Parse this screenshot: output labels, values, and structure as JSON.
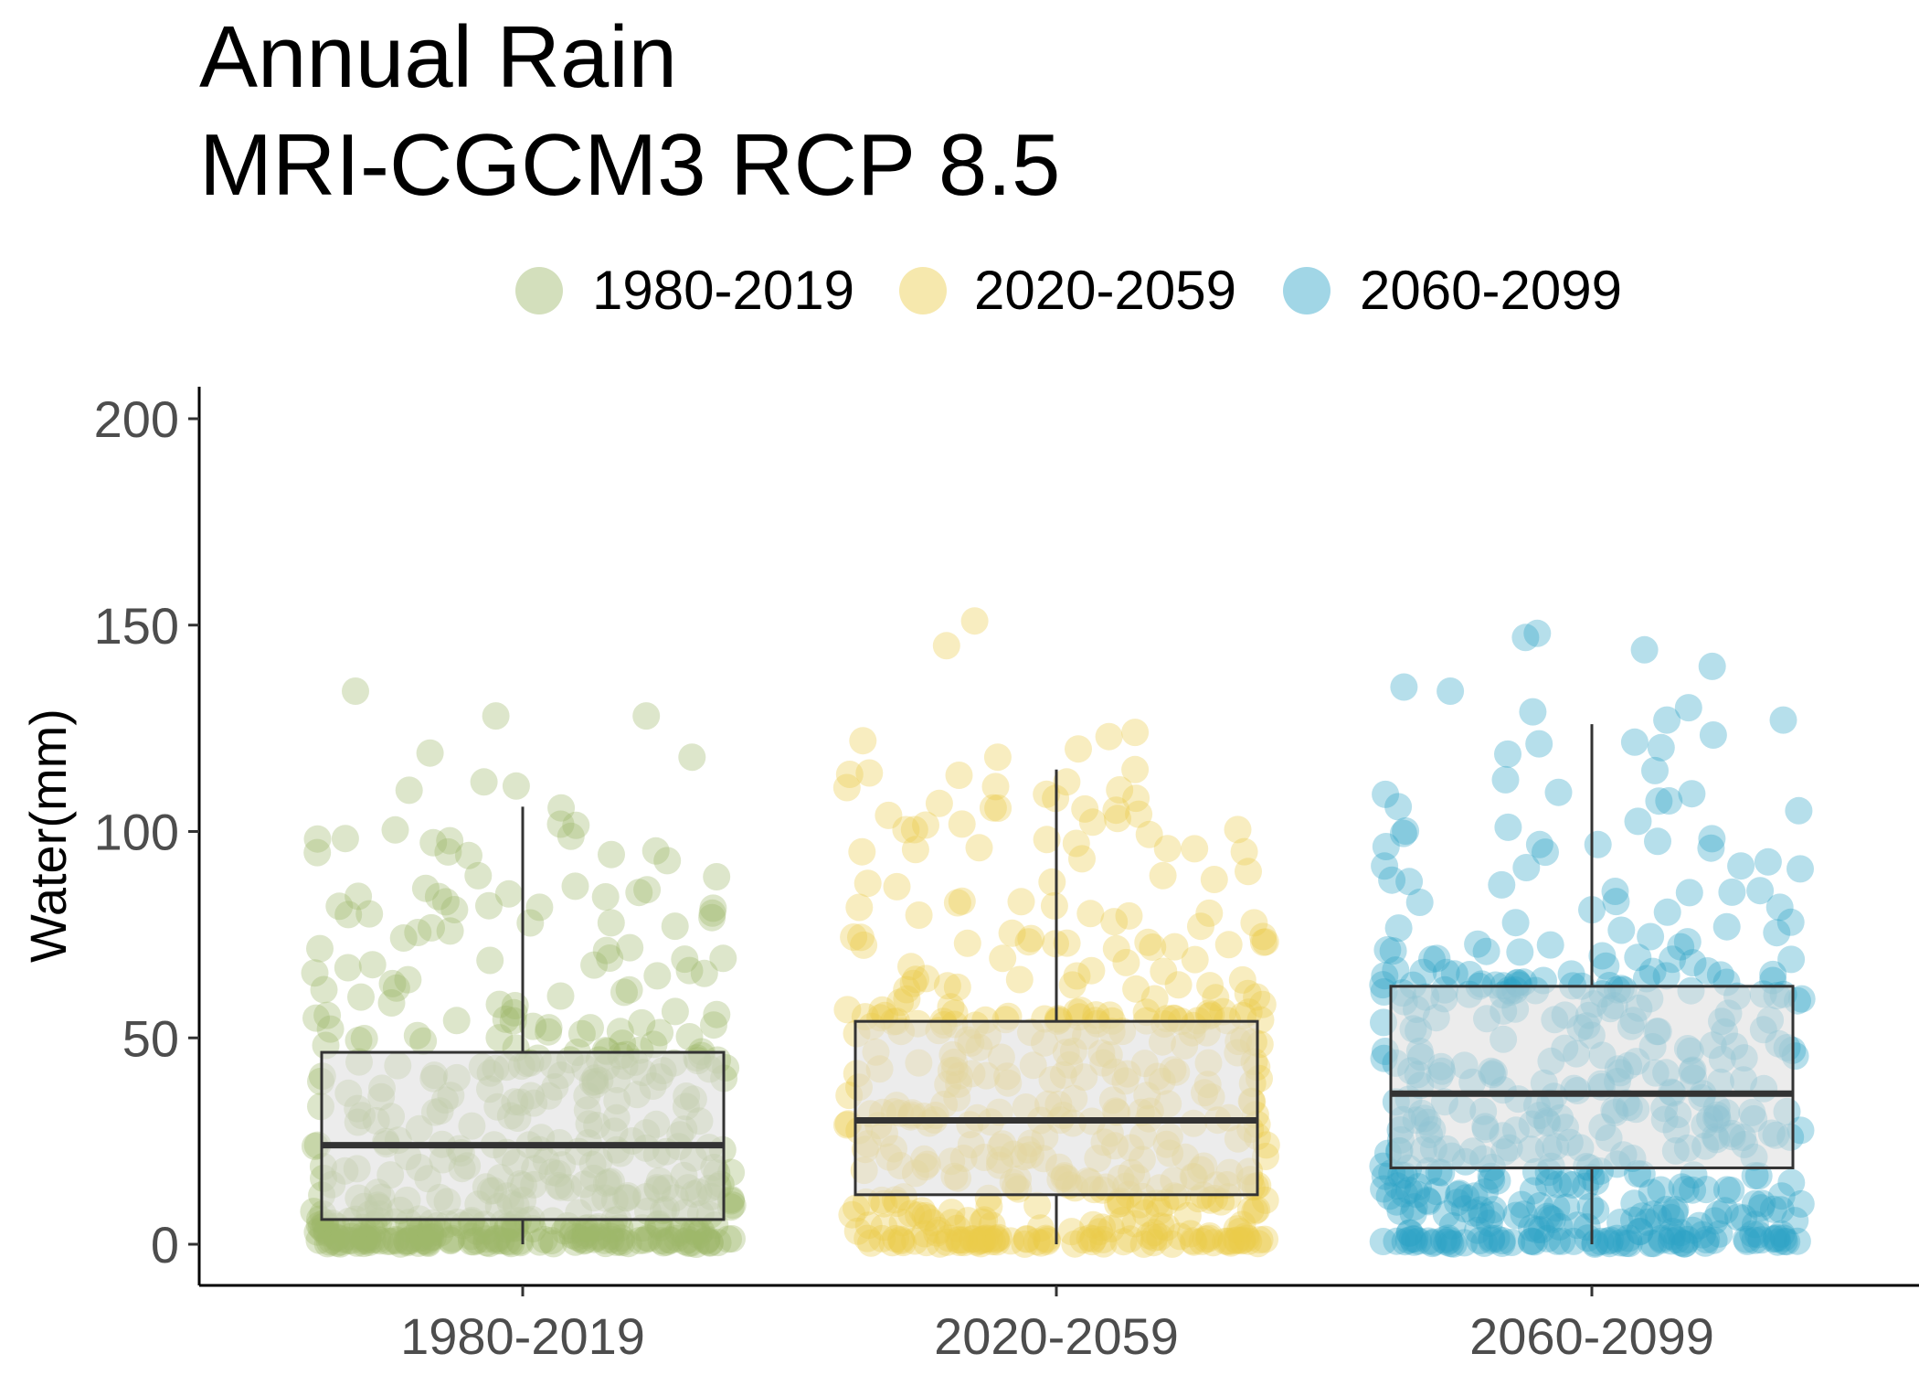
{
  "chart_data": {
    "type": "box",
    "title_lines": [
      "Annual Rain",
      "MRI-CGCM3 RCP 8.5"
    ],
    "xlabel": "",
    "ylabel": "Water(mm)",
    "ylim": [
      -10,
      208
    ],
    "yticks": [
      0,
      50,
      100,
      150,
      200
    ],
    "categories": [
      "1980-2019",
      "2020-2059",
      "2060-2099"
    ],
    "legend": {
      "position": "top",
      "entries": [
        {
          "label": "1980-2019",
          "color": "#9db86a"
        },
        {
          "label": "2020-2059",
          "color": "#ebcb4a"
        },
        {
          "label": "2060-2099",
          "color": "#2ea3c7"
        }
      ]
    },
    "boxes": [
      {
        "category": "1980-2019",
        "whisker_low": 0,
        "q1": 6,
        "median": 24,
        "q3": 46.5,
        "whisker_high": 106
      },
      {
        "category": "2020-2059",
        "whisker_low": 0,
        "q1": 12,
        "median": 30,
        "q3": 54,
        "whisker_high": 115
      },
      {
        "category": "2060-2099",
        "whisker_low": 0,
        "q1": 18.5,
        "median": 36.5,
        "q3": 62.5,
        "whisker_high": 126
      }
    ],
    "outliers": [
      {
        "category": "1980-2019",
        "values": [
          110,
          111,
          118,
          128,
          128,
          134,
          119,
          112
        ]
      },
      {
        "category": "2020-2059",
        "values": [
          118,
          120,
          123,
          124,
          145,
          151,
          115,
          122
        ]
      },
      {
        "category": "2060-2099",
        "values": [
          129,
          127,
          135,
          140,
          147,
          148,
          144,
          130,
          134,
          127
        ]
      }
    ],
    "points_per_group": 480,
    "point_alpha": 0.35,
    "grid": false,
    "box_fill": "#dcdcdc",
    "box_stroke": "#333333"
  }
}
